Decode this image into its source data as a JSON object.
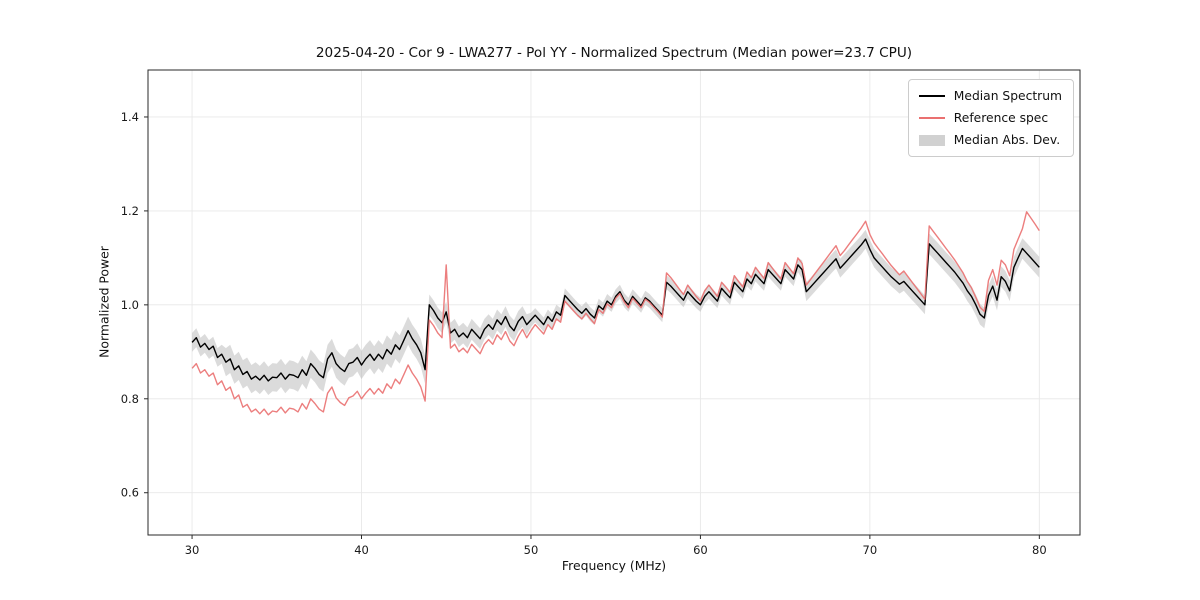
{
  "figure": {
    "title": "2025-04-20 - Cor 9 - LWA277 - Pol YY - Normalized Spectrum (Median power=23.7 CPU)",
    "xlabel": "Frequency (MHz)",
    "ylabel": "Normalized Power"
  },
  "legend": {
    "items": [
      {
        "label": "Median Spectrum",
        "type": "line",
        "color": "#000000"
      },
      {
        "label": "Reference spec",
        "type": "line",
        "color": "#ea7070"
      },
      {
        "label": "Median Abs. Dev.",
        "type": "band",
        "color": "#c2c2c2"
      }
    ]
  },
  "chart_data": {
    "type": "line",
    "title": "2025-04-20 - Cor 9 - LWA277 - Pol YY - Normalized Spectrum (Median power=23.7 CPU)",
    "xlabel": "Frequency (MHz)",
    "ylabel": "Normalized Power",
    "xlim": [
      27.4,
      82.4
    ],
    "ylim": [
      0.51,
      1.5
    ],
    "xticks": [
      30,
      40,
      50,
      60,
      70,
      80
    ],
    "yticks": [
      0.6,
      0.8,
      1.0,
      1.2,
      1.4
    ],
    "grid": true,
    "legend_position": "upper right",
    "x": {
      "start": 30.0,
      "step": 0.25,
      "count": 201
    },
    "series": [
      {
        "name": "Median Spectrum",
        "color": "#000000",
        "values": [
          0.92,
          0.93,
          0.91,
          0.918,
          0.905,
          0.912,
          0.888,
          0.895,
          0.878,
          0.885,
          0.862,
          0.87,
          0.852,
          0.858,
          0.842,
          0.848,
          0.84,
          0.85,
          0.838,
          0.846,
          0.845,
          0.855,
          0.842,
          0.852,
          0.85,
          0.845,
          0.862,
          0.85,
          0.875,
          0.865,
          0.852,
          0.845,
          0.885,
          0.898,
          0.875,
          0.865,
          0.858,
          0.875,
          0.878,
          0.888,
          0.872,
          0.885,
          0.895,
          0.882,
          0.895,
          0.885,
          0.905,
          0.895,
          0.915,
          0.905,
          0.925,
          0.945,
          0.928,
          0.915,
          0.898,
          0.862,
          1.0,
          0.988,
          0.972,
          0.962,
          0.985,
          0.94,
          0.948,
          0.932,
          0.94,
          0.93,
          0.948,
          0.938,
          0.928,
          0.948,
          0.958,
          0.948,
          0.968,
          0.958,
          0.975,
          0.955,
          0.945,
          0.965,
          0.975,
          0.958,
          0.968,
          0.978,
          0.968,
          0.958,
          0.975,
          0.965,
          0.985,
          0.978,
          1.02,
          1.01,
          1.0,
          0.99,
          0.982,
          0.992,
          0.98,
          0.972,
          0.998,
          0.99,
          1.008,
          1.0,
          1.018,
          1.028,
          1.01,
          1.0,
          1.018,
          1.008,
          0.998,
          1.015,
          1.008,
          0.998,
          0.988,
          0.978,
          1.048,
          1.04,
          1.03,
          1.02,
          1.01,
          1.028,
          1.018,
          1.008,
          1.0,
          1.018,
          1.028,
          1.018,
          1.008,
          1.035,
          1.025,
          1.015,
          1.048,
          1.038,
          1.028,
          1.055,
          1.045,
          1.065,
          1.055,
          1.045,
          1.075,
          1.065,
          1.055,
          1.045,
          1.075,
          1.065,
          1.055,
          1.085,
          1.075,
          1.028,
          1.038,
          1.048,
          1.058,
          1.068,
          1.078,
          1.088,
          1.098,
          1.078,
          1.088,
          1.098,
          1.108,
          1.118,
          1.128,
          1.14,
          1.118,
          1.1,
          1.09,
          1.08,
          1.07,
          1.06,
          1.052,
          1.044,
          1.05,
          1.04,
          1.03,
          1.02,
          1.01,
          1.0,
          1.13,
          1.12,
          1.11,
          1.1,
          1.09,
          1.08,
          1.07,
          1.058,
          1.046,
          1.03,
          1.018,
          1.0,
          0.98,
          0.972,
          1.02,
          1.04,
          1.01,
          1.06,
          1.05,
          1.03,
          1.08,
          1.1,
          1.12,
          1.11,
          1.1,
          1.09,
          1.08
        ]
      },
      {
        "name": "Reference spec",
        "color": "#ea7070",
        "values": [
          0.865,
          0.875,
          0.855,
          0.862,
          0.848,
          0.855,
          0.83,
          0.838,
          0.818,
          0.825,
          0.8,
          0.808,
          0.782,
          0.788,
          0.772,
          0.778,
          0.768,
          0.778,
          0.766,
          0.774,
          0.772,
          0.782,
          0.77,
          0.78,
          0.778,
          0.772,
          0.79,
          0.778,
          0.8,
          0.79,
          0.778,
          0.772,
          0.812,
          0.825,
          0.802,
          0.792,
          0.786,
          0.802,
          0.806,
          0.816,
          0.8,
          0.812,
          0.822,
          0.81,
          0.822,
          0.812,
          0.832,
          0.822,
          0.842,
          0.832,
          0.852,
          0.872,
          0.855,
          0.842,
          0.825,
          0.795,
          0.968,
          0.956,
          0.94,
          0.93,
          1.085,
          0.908,
          0.916,
          0.9,
          0.908,
          0.898,
          0.916,
          0.906,
          0.896,
          0.916,
          0.926,
          0.916,
          0.936,
          0.926,
          0.943,
          0.923,
          0.913,
          0.933,
          0.948,
          0.93,
          0.945,
          0.958,
          0.948,
          0.938,
          0.958,
          0.948,
          0.97,
          0.963,
          1.008,
          0.998,
          0.988,
          0.978,
          0.97,
          0.982,
          0.97,
          0.96,
          0.99,
          0.982,
          1.002,
          0.994,
          1.014,
          1.024,
          1.006,
          0.994,
          1.014,
          1.004,
          0.994,
          1.012,
          1.005,
          0.995,
          0.985,
          0.974,
          1.068,
          1.058,
          1.046,
          1.034,
          1.022,
          1.042,
          1.03,
          1.018,
          1.008,
          1.03,
          1.042,
          1.03,
          1.018,
          1.048,
          1.038,
          1.026,
          1.062,
          1.05,
          1.038,
          1.07,
          1.058,
          1.08,
          1.068,
          1.056,
          1.09,
          1.078,
          1.066,
          1.055,
          1.09,
          1.078,
          1.066,
          1.1,
          1.088,
          1.042,
          1.054,
          1.066,
          1.078,
          1.09,
          1.102,
          1.114,
          1.126,
          1.105,
          1.116,
          1.128,
          1.14,
          1.152,
          1.164,
          1.178,
          1.15,
          1.132,
          1.12,
          1.108,
          1.096,
          1.084,
          1.074,
          1.064,
          1.072,
          1.06,
          1.048,
          1.036,
          1.024,
          1.012,
          1.168,
          1.156,
          1.144,
          1.132,
          1.12,
          1.108,
          1.096,
          1.082,
          1.068,
          1.05,
          1.036,
          1.016,
          0.995,
          0.986,
          1.052,
          1.075,
          1.042,
          1.095,
          1.085,
          1.062,
          1.118,
          1.14,
          1.162,
          1.198,
          1.185,
          1.172,
          1.158
        ]
      }
    ],
    "band": {
      "name": "Median Abs. Dev.",
      "around_series": "Median Spectrum",
      "color": "#b8b8b8",
      "opacity": 0.5,
      "half_width_segments": [
        [
          30.0,
          32.0,
          0.02
        ],
        [
          32.0,
          44.0,
          0.03
        ],
        [
          44.0,
          50.0,
          0.022
        ],
        [
          50.0,
          66.0,
          0.015
        ],
        [
          66.0,
          73.3,
          0.02
        ],
        [
          73.3,
          80.01,
          0.022
        ]
      ]
    }
  }
}
